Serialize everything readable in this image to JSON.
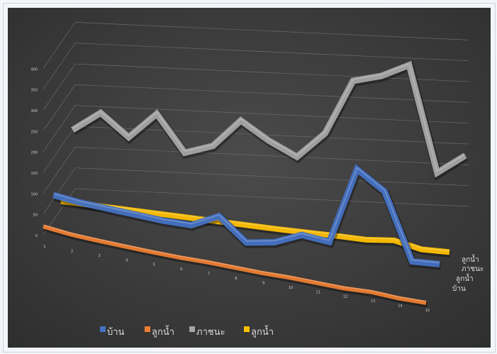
{
  "chart_data": {
    "type": "line",
    "subtype": "3d-line",
    "title": "",
    "xlabel": "",
    "ylabel": "",
    "ylim": [
      0,
      400
    ],
    "y_ticks": [
      "0",
      "50",
      "100",
      "150",
      "200",
      "250",
      "300",
      "350",
      "400"
    ],
    "categories": [
      "1",
      "2",
      "3",
      "4",
      "5",
      "6",
      "7",
      "8",
      "9",
      "10",
      "11",
      "12",
      "13",
      "14",
      "15"
    ],
    "depth_labels": [
      "ลูกน้ำ",
      "ภาชนะ",
      "ลูกน้ำ",
      "บ้าน"
    ],
    "grid": true,
    "legend_position": "bottom",
    "series": [
      {
        "name": "บ้าน",
        "color": "#4472C4",
        "values": [
          60,
          50,
          44,
          38,
          32,
          30,
          60,
          5,
          14,
          40,
          32,
          215,
          170,
          10,
          12
        ]
      },
      {
        "name": "ลูกน้ำ",
        "color": "#ED7D31",
        "values": [
          20,
          12,
          8,
          5,
          2,
          0,
          0,
          -2,
          -4,
          -4,
          -6,
          -8,
          -6,
          -10,
          -10
        ]
      },
      {
        "name": "ภาชนะ",
        "color": "#A5A5A5",
        "values": [
          150,
          195,
          140,
          200,
          110,
          130,
          195,
          150,
          115,
          175,
          305,
          320,
          350,
          95,
          140
        ]
      },
      {
        "name": "ลูกน้ำ",
        "color": "#FFC000",
        "values": [
          20,
          18,
          16,
          14,
          12,
          10,
          8,
          6,
          4,
          3,
          2,
          0,
          5,
          -10,
          -10
        ]
      }
    ]
  }
}
